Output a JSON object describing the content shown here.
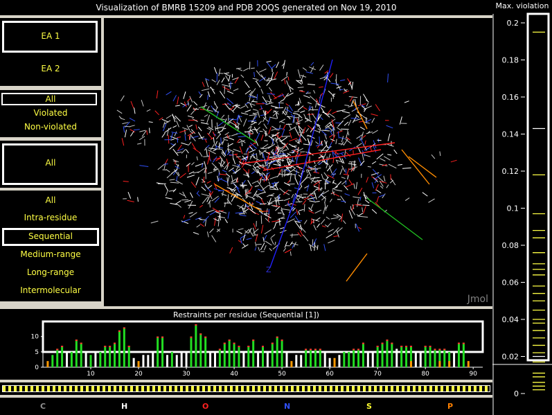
{
  "title": "Visualization of BMRB 15209 and PDB 2OQS generated on Nov 19, 2010",
  "entity_options": [
    {
      "label": "EA 1",
      "selected": true
    },
    {
      "label": "EA 2",
      "selected": false
    }
  ],
  "violation_options": [
    {
      "label": "All",
      "selected": true
    },
    {
      "label": "Violated",
      "selected": false
    },
    {
      "label": "Non-violated",
      "selected": false
    }
  ],
  "type_options": [
    {
      "label": "All",
      "selected": true
    }
  ],
  "range_options": [
    {
      "label": "All",
      "selected": false
    },
    {
      "label": "Intra-residue",
      "selected": false
    },
    {
      "label": "Sequential",
      "selected": true
    },
    {
      "label": "Medium-range",
      "selected": false
    },
    {
      "label": "Long-range",
      "selected": false
    },
    {
      "label": "Intermolecular",
      "selected": false
    }
  ],
  "viewer": {
    "watermark": "Jmol",
    "axis_label": "Z"
  },
  "elements": [
    {
      "symbol": "C",
      "color": "#909090"
    },
    {
      "symbol": "H",
      "color": "#ffffff"
    },
    {
      "symbol": "O",
      "color": "#ff2020"
    },
    {
      "symbol": "N",
      "color": "#3050f8"
    },
    {
      "symbol": "S",
      "color": "#ffff30"
    },
    {
      "symbol": "P",
      "color": "#ff8000"
    }
  ],
  "violation_scale": {
    "title": "Max. violation",
    "ticks": [
      "0.2",
      "0.18",
      "0.16",
      "0.14",
      "0.12",
      "0.1",
      "0.08",
      "0.06",
      "0.04",
      "0.02",
      "0"
    ]
  },
  "chart_data": {
    "type": "bar",
    "title": "Restraints per residue (Sequential [1])",
    "xlabel": "",
    "ylabel": "",
    "ylim": [
      0,
      14
    ],
    "xlim": [
      0,
      92
    ],
    "xticks": [
      "10",
      "20",
      "30",
      "40",
      "50",
      "60",
      "70",
      "80",
      "90"
    ],
    "yticks": [
      "0",
      "5",
      "10"
    ],
    "series": [
      {
        "color": "#22dd22",
        "values": [
          [
            2,
            4
          ],
          [
            3,
            6
          ],
          [
            4,
            7
          ],
          [
            6,
            5
          ],
          [
            7,
            9
          ],
          [
            8,
            8
          ],
          [
            10,
            4
          ],
          [
            12,
            5
          ],
          [
            13,
            7
          ],
          [
            14,
            7
          ],
          [
            15,
            8
          ],
          [
            16,
            12
          ],
          [
            17,
            13
          ],
          [
            18,
            7
          ],
          [
            24,
            10
          ],
          [
            25,
            10
          ],
          [
            27,
            5
          ],
          [
            31,
            10
          ],
          [
            32,
            14
          ],
          [
            33,
            11
          ],
          [
            34,
            10
          ],
          [
            37,
            6
          ],
          [
            38,
            8
          ],
          [
            39,
            9
          ],
          [
            40,
            8
          ],
          [
            41,
            7
          ],
          [
            43,
            7
          ],
          [
            44,
            9
          ],
          [
            46,
            7
          ],
          [
            48,
            8
          ],
          [
            49,
            10
          ],
          [
            50,
            9
          ],
          [
            55,
            6
          ],
          [
            56,
            6
          ],
          [
            57,
            6
          ],
          [
            58,
            6
          ],
          [
            63,
            5
          ],
          [
            64,
            5
          ],
          [
            65,
            6
          ],
          [
            66,
            6
          ],
          [
            67,
            8
          ],
          [
            70,
            7
          ],
          [
            71,
            8
          ],
          [
            72,
            9
          ],
          [
            73,
            8
          ],
          [
            75,
            7
          ],
          [
            76,
            7
          ],
          [
            77,
            7
          ],
          [
            80,
            7
          ],
          [
            81,
            7
          ],
          [
            82,
            6
          ],
          [
            83,
            6
          ],
          [
            84,
            6
          ],
          [
            85,
            5
          ],
          [
            87,
            8
          ],
          [
            88,
            8
          ]
        ]
      },
      {
        "color": "#ffffff",
        "values": [
          [
            5,
            5
          ],
          [
            9,
            5
          ],
          [
            11,
            5
          ],
          [
            19,
            3
          ],
          [
            21,
            4
          ],
          [
            22,
            4
          ],
          [
            23,
            5
          ],
          [
            26,
            4
          ],
          [
            28,
            4
          ],
          [
            29,
            5
          ],
          [
            30,
            5
          ],
          [
            35,
            5
          ],
          [
            36,
            5
          ],
          [
            42,
            5
          ],
          [
            45,
            5
          ],
          [
            47,
            5
          ],
          [
            51,
            5
          ],
          [
            53,
            4
          ],
          [
            54,
            4
          ],
          [
            59,
            5
          ],
          [
            60,
            3
          ],
          [
            62,
            4
          ],
          [
            68,
            5
          ],
          [
            69,
            5
          ],
          [
            74,
            6
          ],
          [
            78,
            5
          ],
          [
            79,
            5
          ],
          [
            86,
            5
          ]
        ]
      },
      {
        "color": "#ff9900",
        "values": [
          [
            1,
            2
          ],
          [
            20,
            2
          ],
          [
            52,
            2
          ],
          [
            61,
            3
          ],
          [
            77,
            2
          ],
          [
            83,
            2
          ],
          [
            85,
            2
          ],
          [
            89,
            2
          ]
        ]
      }
    ]
  }
}
